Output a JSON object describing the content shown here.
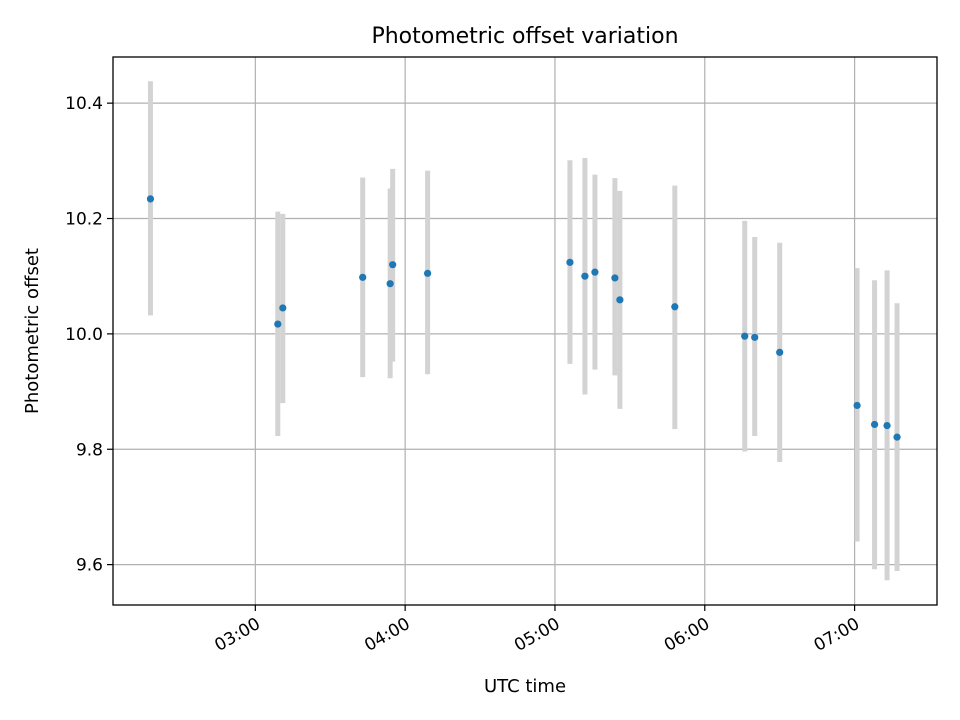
{
  "chart_data": {
    "type": "scatter",
    "title": "Photometric offset variation",
    "xlabel": "UTC time",
    "ylabel": "Photometric offset",
    "x_axis": "time",
    "xlim": [
      "02:03",
      "07:33"
    ],
    "ylim": [
      9.53,
      10.48
    ],
    "xticks": [
      "03:00",
      "04:00",
      "05:00",
      "06:00",
      "07:00"
    ],
    "yticks": [
      9.6,
      9.8,
      10.0,
      10.2,
      10.4
    ],
    "grid": true,
    "colors": {
      "point": "#1f77b4",
      "errorbar": "#d3d3d3"
    },
    "points": [
      {
        "x": "02:18",
        "y": 10.234,
        "ylow": 10.032,
        "yhigh": 10.438
      },
      {
        "x": "03:09",
        "y": 10.017,
        "ylow": 9.823,
        "yhigh": 10.212
      },
      {
        "x": "03:11",
        "y": 10.045,
        "ylow": 9.88,
        "yhigh": 10.208
      },
      {
        "x": "03:43",
        "y": 10.098,
        "ylow": 9.925,
        "yhigh": 10.271
      },
      {
        "x": "03:54",
        "y": 10.087,
        "ylow": 9.923,
        "yhigh": 10.252
      },
      {
        "x": "03:55",
        "y": 10.12,
        "ylow": 9.952,
        "yhigh": 10.286
      },
      {
        "x": "04:09",
        "y": 10.105,
        "ylow": 9.93,
        "yhigh": 10.283
      },
      {
        "x": "05:06",
        "y": 10.124,
        "ylow": 9.948,
        "yhigh": 10.301
      },
      {
        "x": "05:12",
        "y": 10.1,
        "ylow": 9.895,
        "yhigh": 10.305
      },
      {
        "x": "05:16",
        "y": 10.107,
        "ylow": 9.938,
        "yhigh": 10.276
      },
      {
        "x": "05:24",
        "y": 10.097,
        "ylow": 9.928,
        "yhigh": 10.27
      },
      {
        "x": "05:26",
        "y": 10.059,
        "ylow": 9.87,
        "yhigh": 10.248
      },
      {
        "x": "05:48",
        "y": 10.047,
        "ylow": 9.835,
        "yhigh": 10.257
      },
      {
        "x": "06:16",
        "y": 9.996,
        "ylow": 9.796,
        "yhigh": 10.196
      },
      {
        "x": "06:20",
        "y": 9.994,
        "ylow": 9.823,
        "yhigh": 10.168
      },
      {
        "x": "06:30",
        "y": 9.968,
        "ylow": 9.778,
        "yhigh": 10.158
      },
      {
        "x": "07:01",
        "y": 9.876,
        "ylow": 9.64,
        "yhigh": 10.114
      },
      {
        "x": "07:08",
        "y": 9.843,
        "ylow": 9.592,
        "yhigh": 10.093
      },
      {
        "x": "07:13",
        "y": 9.841,
        "ylow": 9.573,
        "yhigh": 10.11
      },
      {
        "x": "07:17",
        "y": 9.821,
        "ylow": 9.589,
        "yhigh": 10.053
      }
    ]
  }
}
